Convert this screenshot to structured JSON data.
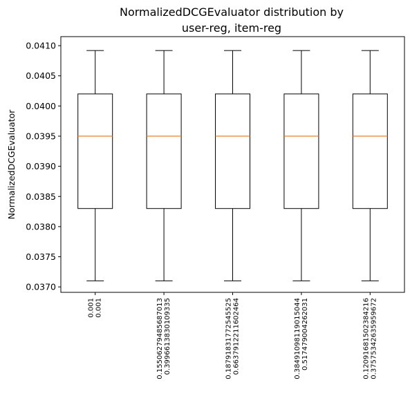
{
  "chart_data": {
    "type": "box",
    "title_lines": [
      "NormalizedDCGEvaluator distribution by",
      "user-reg, item-reg"
    ],
    "ylabel": "NormalizedDCGEvaluator",
    "xlabel": "",
    "ylim": [
      0.03691,
      0.04115
    ],
    "yticks": [
      "0.0370",
      "0.0375",
      "0.0380",
      "0.0385",
      "0.0390",
      "0.0395",
      "0.0400",
      "0.0405",
      "0.0410"
    ],
    "categories": [
      [
        "0.001",
        "0.001"
      ],
      [
        "0.15506279485687013",
        "0.3996613830109335"
      ],
      [
        "0.18791831772545525",
        "0.6637912211602464"
      ],
      [
        "0.38491098119015044",
        "0.517479004262031"
      ],
      [
        "0.12091681502384216",
        "0.37575342635959672"
      ]
    ],
    "boxes": [
      {
        "whisker_low": 0.0371,
        "q1": 0.0383,
        "median": 0.0395,
        "q3": 0.0402,
        "whisker_high": 0.04092
      },
      {
        "whisker_low": 0.0371,
        "q1": 0.0383,
        "median": 0.0395,
        "q3": 0.0402,
        "whisker_high": 0.04092
      },
      {
        "whisker_low": 0.0371,
        "q1": 0.0383,
        "median": 0.0395,
        "q3": 0.0402,
        "whisker_high": 0.04092
      },
      {
        "whisker_low": 0.0371,
        "q1": 0.0383,
        "median": 0.0395,
        "q3": 0.0402,
        "whisker_high": 0.04092
      },
      {
        "whisker_low": 0.0371,
        "q1": 0.0383,
        "median": 0.0395,
        "q3": 0.0402,
        "whisker_high": 0.04092
      }
    ],
    "grid": false,
    "legend": "none",
    "colors": {
      "box": "#000000",
      "median": "#ff7f0e",
      "background": "#ffffff"
    }
  }
}
